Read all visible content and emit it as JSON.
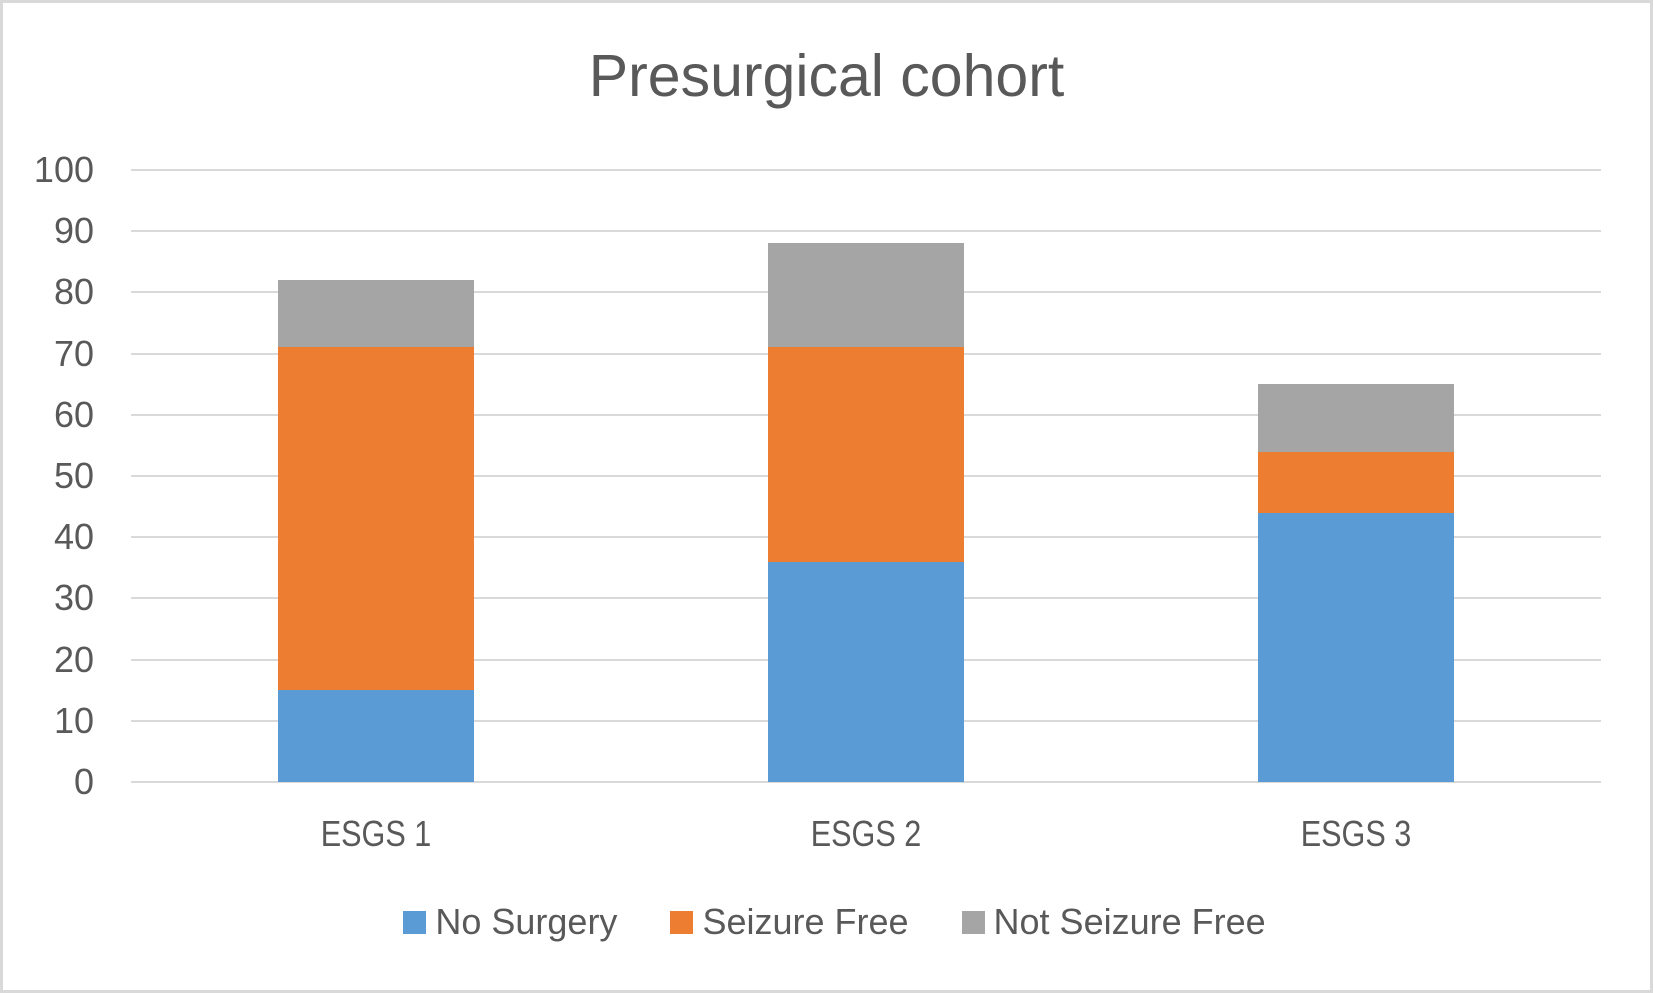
{
  "chart_data": {
    "type": "bar",
    "subtype": "stacked-column",
    "title": "Presurgical cohort",
    "categories": [
      "ESGS 1",
      "ESGS 2",
      "ESGS 3"
    ],
    "series": [
      {
        "name": "No Surgery",
        "color": "#5B9BD5",
        "values": [
          15,
          36,
          44
        ]
      },
      {
        "name": "Seizure Free",
        "color": "#ED7D31",
        "values": [
          56,
          35,
          10
        ]
      },
      {
        "name": "Not Seizure Free",
        "color": "#A5A5A5",
        "values": [
          11,
          17,
          11
        ]
      }
    ],
    "stack_totals": [
      82,
      88,
      65
    ],
    "xlabel": "",
    "ylabel": "",
    "ylim": [
      0,
      100
    ],
    "ytick_step": 10,
    "ytick_labels": [
      "0",
      "10",
      "20",
      "30",
      "40",
      "50",
      "60",
      "70",
      "80",
      "90",
      "100"
    ],
    "grid": true,
    "legend_position": "bottom",
    "colors": {
      "text": "#595959",
      "gridline": "#D9D9D9",
      "frame": "#D9D9D9",
      "background": "#FFFFFF"
    }
  }
}
